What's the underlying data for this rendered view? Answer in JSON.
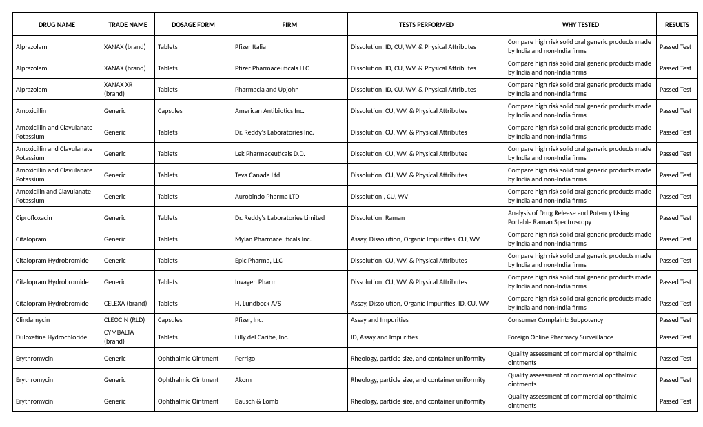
{
  "table": {
    "columns": [
      "DRUG NAME",
      "TRADE NAME",
      "DOSAGE FORM",
      "FIRM",
      "TESTS PERFORMED",
      "WHY TESTED",
      "RESULTS"
    ],
    "rows": [
      [
        "Alprazolam",
        "XANAX (brand)",
        "Tablets",
        "Pfizer Italia",
        "Dissolution, ID, CU, WV, & Physical Attributes",
        "Compare high risk solid oral generic products made by India and non-India firms",
        "Passed Test"
      ],
      [
        "Alprazolam",
        "XANAX (brand)",
        "Tablets",
        "Pfizer Pharmaceuticals LLC",
        "Dissolution, ID, CU, WV, & Physical Attributes",
        "Compare high risk solid oral generic products made by India and non-India firms",
        "Passed Test"
      ],
      [
        "Alprazolam",
        "XANAX XR (brand)",
        "Tablets",
        "Pharmacia and Upjohn",
        "Dissolution, ID, CU, WV, & Physical Attributes",
        "Compare high risk solid oral generic products made by India and non-India firms",
        "Passed Test"
      ],
      [
        "Amoxicillin",
        "Generic",
        "Capsules",
        "American Antibiotics Inc.",
        "Dissolution, CU, WV, & Physical Attributes",
        "Compare high risk solid oral generic products made by India and non-India firms",
        "Passed Test"
      ],
      [
        "Amoxicillin and Clavulanate Potassium",
        "Generic",
        "Tablets",
        "Dr. Reddy's Laboratories Inc.",
        "Dissolution, CU, WV, & Physical Attributes",
        "Compare high risk solid oral generic products made by India and non-India firms",
        "Passed Test"
      ],
      [
        "Amoxicillin and Clavulanate Potassium",
        "Generic",
        "Tablets",
        "Lek Pharmaceuticals D.D.",
        "Dissolution, CU, WV, & Physical Attributes",
        "Compare high risk solid oral generic products made by India and non-India firms",
        "Passed Test"
      ],
      [
        "Amoxicillin and Clavulanate Potassium",
        "Generic",
        "Tablets",
        "Teva Canada Ltd",
        "Dissolution, CU, WV, & Physical Attributes",
        "Compare high risk solid oral generic products made by India and non-India firms",
        "Passed Test"
      ],
      [
        "Amoxicllin and Clavulanate Potassium",
        "Generic",
        "Tablets",
        "Aurobindo Pharma LTD",
        "Dissolution , CU, WV",
        "Compare high risk solid oral generic products made by India and non-India firms",
        "Passed Test"
      ],
      [
        "Ciprofloxacin",
        "Generic",
        "Tablets",
        "Dr. Reddy's Laboratories Limited",
        "Dissolution, Raman",
        "Analysis of Drug Release and Potency Using Portable Raman Spectroscopy",
        "Passed Test"
      ],
      [
        "Citalopram",
        "Generic",
        "Tablets",
        "Mylan Pharmaceuticals Inc.",
        "Assay, Dissolution, Organic Impurities, CU, WV",
        "Compare high risk solid oral generic products made by India and non-India firms",
        "Passed Test"
      ],
      [
        "Citalopram Hydrobromide",
        "Generic",
        "Tablets",
        "Epic Pharma, LLC",
        "Dissolution, CU, WV, & Physical Attributes",
        "Compare high risk solid oral generic products made by India and non-India firms",
        "Passed Test"
      ],
      [
        "Citalopram Hydrobromide",
        "Generic",
        "Tablets",
        "Invagen Pharm",
        "Dissolution, CU, WV, & Physical Attributes",
        "Compare high risk solid oral generic products made by India and non-India firms",
        "Passed Test"
      ],
      [
        "Citalopram Hydrobromide",
        "CELEXA (brand)",
        "Tablets",
        "H. Lundbeck A/S",
        "Assay, Dissolution, Organic Impurities, ID, CU, WV",
        "Compare high risk solid oral generic products made by India and non-India firms",
        "Passed Test"
      ],
      [
        "Clindamycin",
        "CLEOCIN  (RLD)",
        "Capsules",
        "Pfizer, Inc.",
        "Assay and Impurities",
        "Consumer Complaint: Subpotency",
        "Passed Test"
      ],
      [
        "Duloxetine Hydrochloride",
        "CYMBALTA (brand)",
        "Tablets",
        "Lilly del Caribe, Inc.",
        "ID, Assay and Impurities",
        "Foreign Online Pharmacy Surveillance",
        "Passed Test"
      ],
      [
        "Erythromycin",
        "Generic",
        "Ophthalmic Ointment",
        "Perrigo",
        "Rheology, particle size, and container uniformity",
        "Quality assessment of commercial ophthalmic ointments",
        "Passed Test"
      ],
      [
        "Erythromycin",
        "Generic",
        "Ophthalmic Ointment",
        "Akorn",
        "Rheology, particle size, and container uniformity",
        "Quality assessment of commercial ophthalmic ointments",
        "Passed Test"
      ],
      [
        "Erythromycin",
        "Generic",
        "Ophthalmic Ointment",
        "Bausch & Lomb",
        "Rheology, particle size, and container uniformity",
        "Quality assessment of commercial ophthalmic ointments",
        "Passed Test"
      ]
    ]
  }
}
